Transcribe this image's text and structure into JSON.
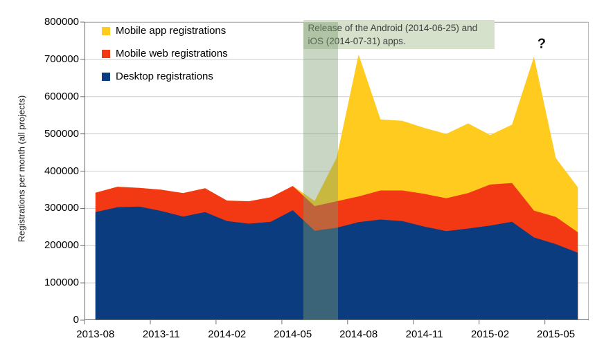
{
  "chart_data": {
    "type": "area",
    "stacked": true,
    "title": "",
    "ylabel": "Registrations per month (all projects)",
    "xlabel": "",
    "ylim": [
      0,
      800000
    ],
    "grid": true,
    "legend_position": "top-left-inside",
    "categories": [
      "2013-08",
      "2013-09",
      "2013-10",
      "2013-11",
      "2013-12",
      "2014-01",
      "2014-02",
      "2014-03",
      "2014-04",
      "2014-05",
      "2014-06",
      "2014-07",
      "2014-08",
      "2014-09",
      "2014-10",
      "2014-11",
      "2014-12",
      "2015-01",
      "2015-02",
      "2015-03",
      "2015-04",
      "2015-05",
      "2015-06"
    ],
    "series": [
      {
        "name": "Desktop registrations",
        "color": "#0c3c80",
        "values": [
          290000,
          303000,
          305000,
          293000,
          278000,
          290000,
          266000,
          259000,
          264000,
          295000,
          240000,
          248000,
          263000,
          270000,
          266000,
          251000,
          239000,
          246000,
          254000,
          264000,
          222000,
          204000,
          181000
        ]
      },
      {
        "name": "Mobile web registrations",
        "color": "#f23914",
        "values": [
          52000,
          55000,
          50000,
          57000,
          63000,
          64000,
          55000,
          60000,
          66000,
          65000,
          66000,
          71000,
          69000,
          78000,
          82000,
          88000,
          88000,
          95000,
          110000,
          104000,
          72000,
          73000,
          55000
        ]
      },
      {
        "name": "Mobile app registrations",
        "color": "#fecb1e",
        "values": [
          0,
          0,
          0,
          0,
          0,
          0,
          0,
          0,
          0,
          0,
          14000,
          117000,
          381000,
          191000,
          187000,
          177000,
          173000,
          187000,
          133000,
          157000,
          413000,
          158000,
          121000
        ]
      }
    ],
    "legend": [
      "Mobile app registrations",
      "Mobile web registrations",
      "Desktop registrations"
    ],
    "y_tick_labels": [
      "0",
      "100000",
      "200000",
      "300000",
      "400000",
      "500000",
      "600000",
      "700000",
      "800000"
    ],
    "x_tick_labels": [
      "2013-08",
      "2013-11",
      "2014-02",
      "2014-05",
      "2014-08",
      "2014-11",
      "2015-02",
      "2015-05"
    ],
    "annotation": {
      "line1": "Release of the Android (2014-06-25) and",
      "line2": "iOS (2014-07-31) apps.",
      "question_mark": "?",
      "band_months": [
        "2014-06",
        "2014-07"
      ],
      "band_color": "rgba(126,157,111,0.42)",
      "box_color": "#d5e1cb"
    },
    "axis_color": "#6a6e70",
    "grid_color": "#c9cdc9",
    "border_color": "#b7bbb7"
  }
}
